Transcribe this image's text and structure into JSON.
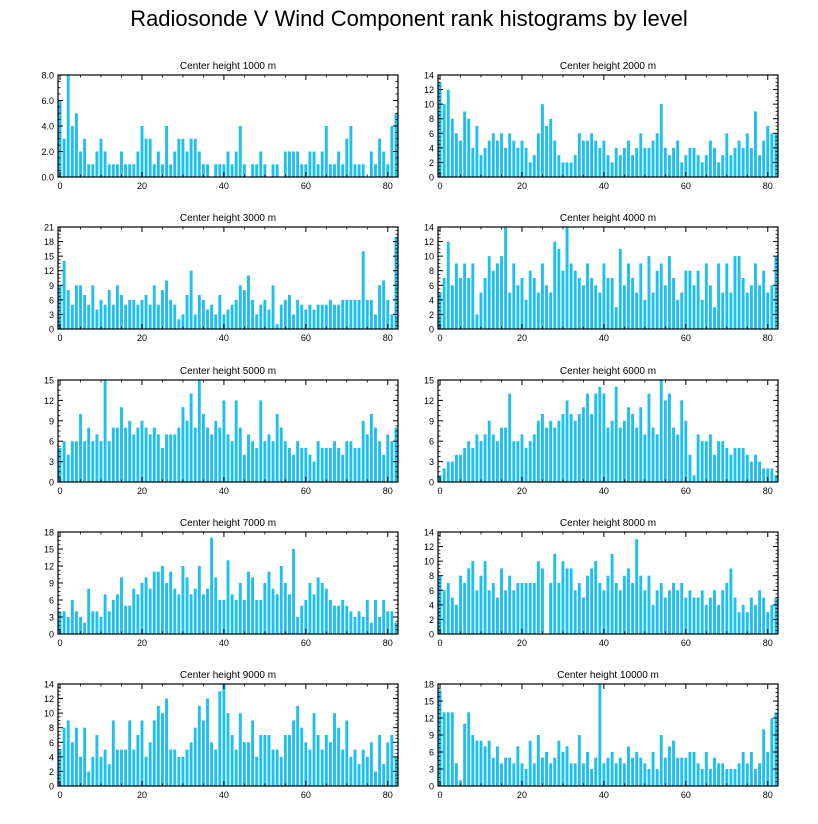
{
  "title": "Radiosonde V Wind Component rank histograms by level",
  "bar_color": "#1ec0f0",
  "chart_data": [
    {
      "type": "bar",
      "title": "Center height 1000 m",
      "x_start": 0,
      "xticks": [
        0,
        20,
        40,
        60,
        80
      ],
      "xlim": [
        -0.5,
        82.5
      ],
      "ylim": [
        0,
        8
      ],
      "yticks": [
        0,
        2,
        4,
        6,
        8
      ],
      "ytick_labels": [
        "0.0",
        "2.0",
        "4.0",
        "6.0",
        "8.0"
      ],
      "values": [
        6,
        3,
        8,
        4,
        5,
        2,
        3,
        1,
        1,
        2,
        3,
        2,
        1,
        1,
        1,
        2,
        1,
        1,
        1,
        2,
        4,
        3,
        3,
        1,
        2,
        1,
        4,
        1,
        2,
        3,
        3,
        2,
        3,
        3,
        2,
        1,
        1,
        0,
        1,
        1,
        1,
        2,
        1,
        2,
        4,
        1,
        0,
        1,
        1,
        2,
        1,
        0,
        1,
        1,
        0,
        2,
        2,
        2,
        2,
        1,
        1,
        2,
        2,
        1,
        2,
        4,
        1,
        1,
        2,
        1,
        3,
        4,
        1,
        1,
        1,
        0,
        2,
        1,
        3,
        2,
        1,
        4,
        5
      ]
    },
    {
      "type": "bar",
      "title": "Center height 2000 m",
      "x_start": 0,
      "xticks": [
        0,
        20,
        40,
        60,
        80
      ],
      "xlim": [
        -0.5,
        82.5
      ],
      "ylim": [
        0,
        14
      ],
      "yticks": [
        0,
        2,
        4,
        6,
        8,
        10,
        12,
        14
      ],
      "ytick_labels": [
        "0",
        "2",
        "4",
        "6",
        "8",
        "10",
        "12",
        "14"
      ],
      "values": [
        13,
        10,
        12,
        8,
        6,
        5,
        9,
        8,
        4,
        7,
        3,
        4,
        5,
        6,
        5,
        6,
        4,
        6,
        5,
        4,
        5,
        4,
        2,
        3,
        6,
        10,
        7,
        8,
        5,
        3,
        2,
        2,
        2,
        3,
        6,
        5,
        5,
        6,
        5,
        4,
        5,
        3,
        2,
        4,
        3,
        4,
        5,
        3,
        4,
        6,
        4,
        4,
        5,
        6,
        10,
        4,
        3,
        4,
        5,
        2,
        3,
        4,
        4,
        3,
        2,
        3,
        5,
        4,
        2,
        3,
        6,
        3,
        4,
        5,
        4,
        6,
        4,
        9,
        3,
        5,
        7,
        6,
        6
      ]
    },
    {
      "type": "bar",
      "title": "Center height 3000 m",
      "x_start": 0,
      "xticks": [
        0,
        20,
        40,
        60,
        80
      ],
      "xlim": [
        -0.5,
        82.5
      ],
      "ylim": [
        0,
        21
      ],
      "yticks": [
        0,
        3,
        6,
        9,
        12,
        15,
        18,
        21
      ],
      "ytick_labels": [
        "0",
        "3",
        "6",
        "9",
        "12",
        "15",
        "18",
        "21"
      ],
      "values": [
        9,
        14,
        8,
        5,
        9,
        9,
        7,
        5,
        9,
        4,
        6,
        5,
        8,
        5,
        9,
        7,
        5,
        6,
        6,
        5,
        6,
        7,
        5,
        9,
        5,
        8,
        10,
        6,
        5,
        2,
        3,
        7,
        12,
        3,
        7,
        6,
        4,
        5,
        3,
        7,
        3,
        4,
        5,
        6,
        9,
        8,
        11,
        6,
        3,
        5,
        6,
        4,
        9,
        1,
        5,
        6,
        7,
        3,
        6,
        5,
        4,
        5,
        4,
        5,
        5,
        5,
        6,
        5,
        5,
        6,
        6,
        6,
        6,
        6,
        16,
        6,
        6,
        3,
        9,
        10,
        6,
        3,
        19
      ]
    },
    {
      "type": "bar",
      "title": "Center height 4000 m",
      "x_start": 0,
      "xticks": [
        0,
        20,
        40,
        60,
        80
      ],
      "xlim": [
        -0.5,
        82.5
      ],
      "ylim": [
        0,
        14
      ],
      "yticks": [
        0,
        2,
        4,
        6,
        8,
        10,
        12,
        14
      ],
      "ytick_labels": [
        "0",
        "2",
        "4",
        "6",
        "8",
        "10",
        "12",
        "14"
      ],
      "values": [
        5,
        7,
        12,
        6,
        9,
        7,
        9,
        7,
        9,
        2,
        5,
        7,
        10,
        8,
        9,
        10,
        14,
        5,
        9,
        6,
        7,
        4,
        8,
        7,
        5,
        9,
        6,
        5,
        12,
        11,
        8,
        14,
        9,
        8,
        7,
        6,
        9,
        7,
        6,
        5,
        9,
        7,
        7,
        3,
        11,
        6,
        9,
        7,
        5,
        9,
        4,
        10,
        5,
        8,
        9,
        6,
        10,
        7,
        4,
        5,
        8,
        8,
        6,
        8,
        4,
        9,
        6,
        3,
        9,
        5,
        9,
        5,
        10,
        10,
        7,
        5,
        6,
        9,
        6,
        8,
        5,
        6,
        10
      ]
    },
    {
      "type": "bar",
      "title": "Center height 5000 m",
      "x_start": 0,
      "xticks": [
        0,
        20,
        40,
        60,
        80
      ],
      "xlim": [
        -0.5,
        82.5
      ],
      "ylim": [
        0,
        15
      ],
      "yticks": [
        0,
        3,
        6,
        9,
        12,
        15
      ],
      "ytick_labels": [
        "0",
        "3",
        "6",
        "9",
        "12",
        "15"
      ],
      "values": [
        5,
        6,
        4,
        6,
        6,
        10,
        6,
        8,
        6,
        7,
        6,
        15,
        6,
        8,
        8,
        11,
        8,
        9,
        7,
        8,
        9,
        8,
        7,
        8,
        7,
        5,
        7,
        7,
        7,
        8,
        11,
        9,
        13,
        8,
        15,
        10,
        8,
        7,
        9,
        8,
        12,
        7,
        6,
        12,
        8,
        4,
        7,
        6,
        5,
        12,
        6,
        7,
        6,
        10,
        8,
        6,
        5,
        4,
        6,
        5,
        5,
        4,
        3,
        6,
        5,
        5,
        5,
        6,
        5,
        4,
        6,
        6,
        5,
        5,
        9,
        7,
        10,
        8,
        6,
        4,
        7,
        6,
        8
      ]
    },
    {
      "type": "bar",
      "title": "Center height 6000 m",
      "x_start": 0,
      "xticks": [
        0,
        20,
        40,
        60,
        80
      ],
      "xlim": [
        -0.5,
        82.5
      ],
      "ylim": [
        0,
        15
      ],
      "yticks": [
        0,
        3,
        6,
        9,
        12,
        15
      ],
      "ytick_labels": [
        "0",
        "3",
        "6",
        "9",
        "12",
        "15"
      ],
      "values": [
        1,
        2,
        3,
        3,
        4,
        4,
        5,
        6,
        5,
        7,
        6,
        7,
        9,
        7,
        6,
        8,
        8,
        13,
        6,
        6,
        7,
        5,
        6,
        7,
        9,
        10,
        8,
        9,
        8,
        9,
        10,
        12,
        10,
        9,
        10,
        11,
        13,
        10,
        13,
        14,
        13,
        8,
        9,
        14,
        8,
        9,
        11,
        10,
        8,
        11,
        7,
        13,
        8,
        7,
        15,
        12,
        13,
        8,
        7,
        12,
        9,
        4,
        1,
        7,
        6,
        6,
        7,
        4,
        6,
        6,
        5,
        4,
        5,
        5,
        5,
        4,
        3,
        4,
        3,
        2,
        2,
        2,
        1
      ]
    },
    {
      "type": "bar",
      "title": "Center height 7000 m",
      "x_start": 0,
      "xticks": [
        0,
        20,
        40,
        60,
        80
      ],
      "xlim": [
        -0.5,
        82.5
      ],
      "ylim": [
        0,
        18
      ],
      "yticks": [
        0,
        3,
        6,
        9,
        12,
        15,
        18
      ],
      "ytick_labels": [
        "0",
        "3",
        "6",
        "9",
        "12",
        "15",
        "18"
      ],
      "values": [
        4,
        4,
        3,
        6,
        4,
        3,
        2,
        8,
        4,
        4,
        3,
        7,
        4,
        6,
        7,
        10,
        5,
        5,
        8,
        7,
        9,
        10,
        8,
        11,
        11,
        12,
        9,
        11,
        8,
        7,
        12,
        10,
        7,
        8,
        12,
        7,
        8,
        17,
        10,
        6,
        6,
        13,
        7,
        6,
        9,
        6,
        11,
        10,
        6,
        6,
        9,
        11,
        8,
        7,
        12,
        9,
        7,
        15,
        3,
        5,
        6,
        9,
        7,
        10,
        9,
        8,
        6,
        5,
        5,
        6,
        5,
        4,
        3,
        4,
        3,
        6,
        2,
        6,
        3,
        6,
        4,
        4,
        2
      ]
    },
    {
      "type": "bar",
      "title": "Center height 8000 m",
      "x_start": 0,
      "xticks": [
        0,
        20,
        40,
        60,
        80
      ],
      "xlim": [
        -0.5,
        82.5
      ],
      "ylim": [
        0,
        14
      ],
      "yticks": [
        0,
        2,
        4,
        6,
        8,
        10,
        12,
        14
      ],
      "ytick_labels": [
        "0",
        "2",
        "4",
        "6",
        "8",
        "10",
        "12",
        "14"
      ],
      "values": [
        8,
        6,
        7,
        5,
        4,
        8,
        7,
        9,
        10,
        6,
        8,
        10,
        6,
        7,
        5,
        9,
        6,
        8,
        6,
        7,
        7,
        7,
        7,
        7,
        10,
        9,
        0,
        7,
        11,
        7,
        10,
        9,
        9,
        6,
        7,
        5,
        8,
        9,
        10,
        7,
        6,
        8,
        11,
        7,
        6,
        8,
        9,
        7,
        13,
        8,
        6,
        8,
        4,
        6,
        7,
        5,
        6,
        7,
        6,
        7,
        5,
        6,
        5,
        5,
        6,
        4,
        5,
        6,
        4,
        6,
        7,
        9,
        5,
        3,
        4,
        3,
        5,
        4,
        6,
        5,
        3,
        4,
        5
      ]
    },
    {
      "type": "bar",
      "title": "Center height 9000 m",
      "x_start": 0,
      "xticks": [
        0,
        20,
        40,
        60,
        80
      ],
      "xlim": [
        -0.5,
        82.5
      ],
      "ylim": [
        0,
        14
      ],
      "yticks": [
        0,
        2,
        4,
        6,
        8,
        10,
        12,
        14
      ],
      "ytick_labels": [
        "0",
        "2",
        "4",
        "6",
        "8",
        "10",
        "12",
        "14"
      ],
      "values": [
        5,
        8,
        9,
        6,
        8,
        4,
        8,
        2,
        4,
        7,
        4,
        5,
        3,
        9,
        5,
        5,
        5,
        9,
        5,
        7,
        9,
        4,
        6,
        9,
        11,
        10,
        12,
        5,
        5,
        4,
        4,
        5,
        6,
        8,
        11,
        9,
        12,
        6,
        5,
        13,
        14,
        10,
        7,
        5,
        10,
        6,
        6,
        9,
        4,
        7,
        7,
        7,
        5,
        5,
        4,
        7,
        7,
        9,
        11,
        8,
        6,
        5,
        10,
        7,
        5,
        7,
        6,
        10,
        8,
        5,
        9,
        4,
        5,
        3,
        5,
        4,
        6,
        2,
        7,
        3,
        6,
        7,
        4
      ]
    },
    {
      "type": "bar",
      "title": "Center height 10000 m",
      "x_start": 0,
      "xticks": [
        0,
        20,
        40,
        60,
        80
      ],
      "xlim": [
        -0.5,
        82.5
      ],
      "ylim": [
        0,
        18
      ],
      "yticks": [
        0,
        3,
        6,
        9,
        12,
        15,
        18
      ],
      "ytick_labels": [
        "0",
        "3",
        "6",
        "9",
        "12",
        "15",
        "18"
      ],
      "values": [
        17,
        13,
        13,
        13,
        4,
        1,
        11,
        13,
        9,
        8,
        8,
        7,
        8,
        5,
        7,
        4,
        5,
        5,
        4,
        7,
        4,
        3,
        8,
        4,
        9,
        5,
        6,
        4,
        5,
        8,
        6,
        7,
        4,
        4,
        9,
        4,
        6,
        3,
        5,
        18,
        4,
        5,
        6,
        4,
        5,
        4,
        7,
        5,
        6,
        5,
        4,
        3,
        6,
        3,
        9,
        5,
        7,
        8,
        5,
        5,
        5,
        6,
        6,
        4,
        3,
        6,
        3,
        5,
        4,
        4,
        3,
        3,
        3,
        4,
        6,
        4,
        6,
        3,
        4,
        10,
        6,
        12,
        13
      ]
    }
  ]
}
